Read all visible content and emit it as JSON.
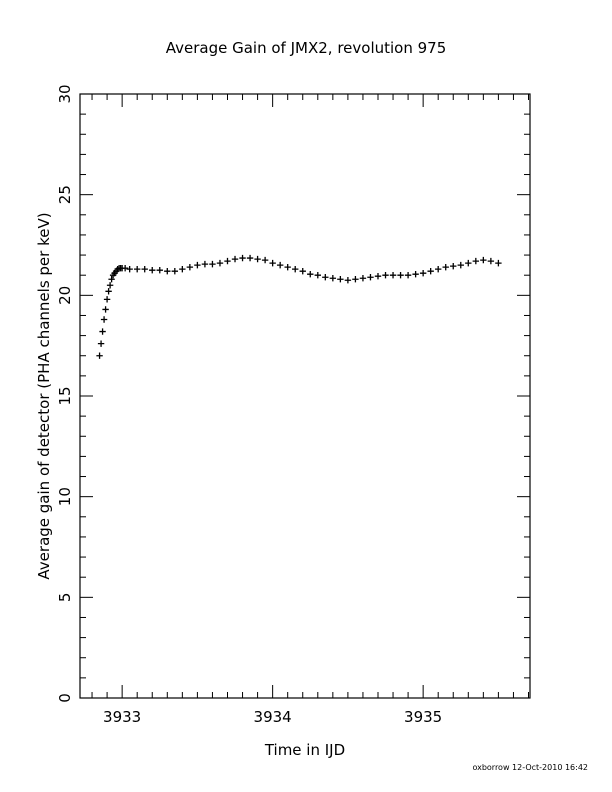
{
  "footer": {
    "credit": "oxborrow 12-Oct-2010 16:42"
  },
  "chart_data": {
    "type": "scatter",
    "title": "Average Gain of JMX2, revolution 975",
    "xlabel": "Time in IJD",
    "ylabel": "Average gain of detector (PHA channels per keV)",
    "xlim": [
      3932.72,
      3935.71
    ],
    "ylim": [
      0,
      30
    ],
    "xticks": [
      3933,
      3934,
      3935
    ],
    "yticks": [
      0,
      5,
      10,
      15,
      20,
      25,
      30
    ],
    "marker": "plus",
    "grid": false,
    "series": [
      {
        "x": [
          3932.85,
          3932.86,
          3932.87,
          3932.88,
          3932.89,
          3932.9,
          3932.91,
          3932.92,
          3932.93,
          3932.94,
          3932.95,
          3932.96,
          3932.97,
          3932.98,
          3932.99,
          3933.0,
          3933.02,
          3933.05,
          3933.1,
          3933.15,
          3933.2,
          3933.25,
          3933.3,
          3933.35,
          3933.4,
          3933.45,
          3933.5,
          3933.55,
          3933.6,
          3933.65,
          3933.7,
          3933.75,
          3933.8,
          3933.85,
          3933.9,
          3933.95,
          3934.0,
          3934.05,
          3934.1,
          3934.15,
          3934.2,
          3934.25,
          3934.3,
          3934.35,
          3934.4,
          3934.45,
          3934.5,
          3934.55,
          3934.6,
          3934.65,
          3934.7,
          3934.75,
          3934.8,
          3934.85,
          3934.9,
          3934.95,
          3935.0,
          3935.05,
          3935.1,
          3935.15,
          3935.2,
          3935.25,
          3935.3,
          3935.35,
          3935.4,
          3935.45,
          3935.5
        ],
        "y": [
          17.0,
          17.6,
          18.2,
          18.8,
          19.3,
          19.8,
          20.2,
          20.5,
          20.8,
          21.0,
          21.1,
          21.2,
          21.3,
          21.35,
          21.35,
          21.35,
          21.35,
          21.3,
          21.3,
          21.3,
          21.25,
          21.25,
          21.2,
          21.2,
          21.3,
          21.4,
          21.5,
          21.55,
          21.55,
          21.6,
          21.7,
          21.8,
          21.85,
          21.85,
          21.8,
          21.75,
          21.6,
          21.5,
          21.4,
          21.3,
          21.2,
          21.05,
          21.0,
          20.9,
          20.85,
          20.8,
          20.75,
          20.8,
          20.85,
          20.9,
          20.95,
          21.0,
          21.0,
          21.0,
          21.0,
          21.05,
          21.1,
          21.2,
          21.3,
          21.4,
          21.45,
          21.5,
          21.6,
          21.7,
          21.75,
          21.7,
          21.6
        ]
      }
    ]
  }
}
